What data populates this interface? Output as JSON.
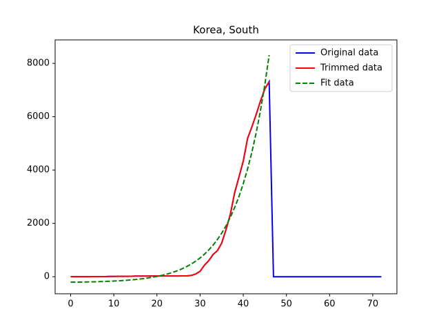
{
  "chart_data": {
    "type": "line",
    "title": "Korea, South",
    "xlim": [
      -3.6,
      75.6
    ],
    "xticks": [
      0,
      10,
      20,
      30,
      40,
      50,
      60,
      70
    ],
    "ylim": [
      -640,
      8880
    ],
    "yticks": [
      0,
      2000,
      4000,
      6000,
      8000
    ],
    "legend": "upper right",
    "series": [
      {
        "name": "Original data",
        "color": "#0000ff",
        "dash": "solid",
        "x": [
          0,
          1,
          2,
          3,
          4,
          5,
          6,
          7,
          8,
          9,
          10,
          11,
          12,
          13,
          14,
          15,
          16,
          17,
          18,
          19,
          20,
          21,
          22,
          23,
          24,
          25,
          26,
          27,
          28,
          29,
          30,
          31,
          32,
          33,
          34,
          35,
          36,
          37,
          38,
          39,
          40,
          41,
          42,
          43,
          44,
          45,
          46,
          47,
          48,
          49,
          50,
          51,
          52,
          53,
          54,
          55,
          56,
          57,
          58,
          59,
          60,
          61,
          62,
          63,
          64,
          65,
          66,
          67,
          68,
          69,
          70,
          71,
          72
        ],
        "values": [
          1,
          1,
          2,
          2,
          3,
          4,
          4,
          4,
          4,
          11,
          12,
          15,
          15,
          16,
          19,
          23,
          24,
          24,
          25,
          27,
          28,
          28,
          28,
          28,
          28,
          29,
          30,
          31,
          51,
          104,
          204,
          433,
          602,
          833,
          977,
          1261,
          1766,
          2337,
          3150,
          3736,
          4335,
          5186,
          5621,
          6088,
          6593,
          7041,
          7314,
          0,
          0,
          0,
          0,
          0,
          0,
          0,
          0,
          0,
          0,
          0,
          0,
          0,
          0,
          0,
          0,
          0,
          0,
          0,
          0,
          0,
          0,
          0,
          0,
          0,
          0
        ]
      },
      {
        "name": "Trimmed data",
        "color": "#ff0000",
        "dash": "solid",
        "x": [
          0,
          1,
          2,
          3,
          4,
          5,
          6,
          7,
          8,
          9,
          10,
          11,
          12,
          13,
          14,
          15,
          16,
          17,
          18,
          19,
          20,
          21,
          22,
          23,
          24,
          25,
          26,
          27,
          28,
          29,
          30,
          31,
          32,
          33,
          34,
          35,
          36,
          37,
          38,
          39,
          40,
          41,
          42,
          43,
          44,
          45,
          46
        ],
        "values": [
          1,
          1,
          2,
          2,
          3,
          4,
          4,
          4,
          4,
          11,
          12,
          15,
          15,
          16,
          19,
          23,
          24,
          24,
          25,
          27,
          28,
          28,
          28,
          28,
          28,
          29,
          30,
          31,
          51,
          104,
          204,
          433,
          602,
          833,
          977,
          1261,
          1766,
          2337,
          3150,
          3736,
          4335,
          5186,
          5621,
          6088,
          6593,
          7041,
          7314
        ]
      },
      {
        "name": "Fit data",
        "color": "#008000",
        "dash": "dashed",
        "x": [
          0,
          1,
          2,
          3,
          4,
          5,
          6,
          7,
          8,
          9,
          10,
          11,
          12,
          13,
          14,
          15,
          16,
          17,
          18,
          19,
          20,
          21,
          22,
          23,
          24,
          25,
          26,
          27,
          28,
          29,
          30,
          31,
          32,
          33,
          34,
          35,
          36,
          37,
          38,
          39,
          40,
          41,
          42,
          43,
          44,
          45,
          46
        ],
        "values": [
          -206,
          -204,
          -201,
          -198,
          -195,
          -191,
          -187,
          -182,
          -176,
          -170,
          -162,
          -154,
          -144,
          -133,
          -120,
          -105,
          -87,
          -68,
          -45,
          -19,
          11,
          45,
          85,
          130,
          183,
          242,
          311,
          390,
          481,
          586,
          706,
          844,
          1002,
          1184,
          1393,
          1633,
          1909,
          2226,
          2590,
          3008,
          3489,
          4041,
          4676,
          5405,
          6242,
          7205,
          8310
        ]
      }
    ]
  }
}
